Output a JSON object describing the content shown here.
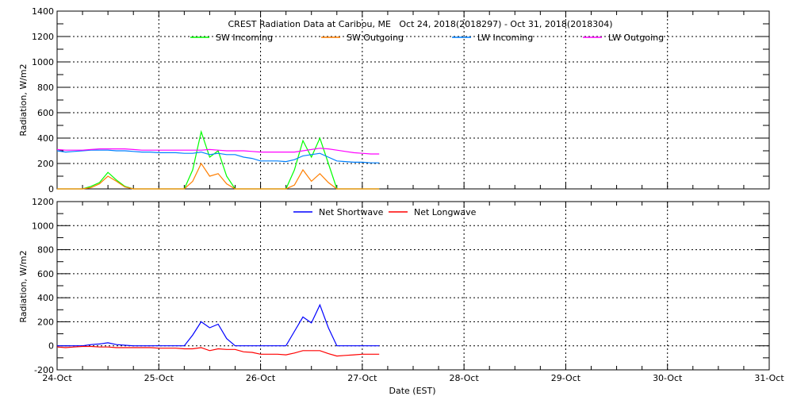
{
  "chart_data": [
    {
      "type": "line",
      "title": "CREST Radiation Data at Caribou, ME   Oct 24, 2018(2018297) - Oct 31, 2018(2018304)",
      "ylabel": "Radiation, W/m2",
      "xlabel": "",
      "xlim": [
        "2018-10-24 00:00",
        "2018-10-31 00:00"
      ],
      "ylim": [
        0,
        1400
      ],
      "yticks": [
        0,
        200,
        400,
        600,
        800,
        1000,
        1200,
        1400
      ],
      "grid": true,
      "legend_placement": "top",
      "x": [
        "10-24 00:00",
        "10-24 02:00",
        "10-24 04:00",
        "10-24 06:00",
        "10-24 08:00",
        "10-24 10:00",
        "10-24 12:00",
        "10-24 14:00",
        "10-24 16:00",
        "10-24 18:00",
        "10-24 20:00",
        "10-24 22:00",
        "10-25 00:00",
        "10-25 02:00",
        "10-25 04:00",
        "10-25 06:00",
        "10-25 08:00",
        "10-25 10:00",
        "10-25 12:00",
        "10-25 14:00",
        "10-25 16:00",
        "10-25 18:00",
        "10-25 20:00",
        "10-25 22:00",
        "10-26 00:00",
        "10-26 02:00",
        "10-26 04:00",
        "10-26 06:00",
        "10-26 08:00",
        "10-26 10:00",
        "10-26 12:00",
        "10-26 14:00",
        "10-26 16:00",
        "10-26 18:00",
        "10-26 20:00",
        "10-26 22:00",
        "10-27 00:00",
        "10-27 02:00",
        "10-27 04:00"
      ],
      "series": [
        {
          "name": "SW Incoming",
          "color": "#00ff00",
          "values": [
            0,
            0,
            0,
            0,
            20,
            50,
            130,
            70,
            20,
            0,
            0,
            0,
            0,
            0,
            0,
            0,
            150,
            450,
            250,
            300,
            100,
            0,
            0,
            0,
            0,
            0,
            0,
            0,
            150,
            380,
            250,
            400,
            200,
            0,
            0,
            0,
            0,
            0,
            0
          ]
        },
        {
          "name": "SW Outgoing",
          "color": "#ff7f00",
          "values": [
            0,
            0,
            0,
            0,
            10,
            40,
            100,
            60,
            15,
            0,
            0,
            0,
            0,
            0,
            0,
            0,
            60,
            200,
            100,
            120,
            40,
            0,
            0,
            0,
            0,
            0,
            0,
            0,
            30,
            150,
            60,
            120,
            50,
            0,
            0,
            0,
            0,
            0,
            0
          ]
        },
        {
          "name": "LW Incoming",
          "color": "#0080ff",
          "values": [
            300,
            290,
            295,
            300,
            305,
            305,
            305,
            300,
            300,
            295,
            290,
            290,
            285,
            285,
            285,
            280,
            280,
            290,
            270,
            280,
            270,
            270,
            250,
            240,
            220,
            220,
            220,
            215,
            230,
            260,
            270,
            280,
            250,
            220,
            215,
            210,
            210,
            205,
            205
          ]
        },
        {
          "name": "LW Outgoing",
          "color": "#ff00ff",
          "values": [
            310,
            305,
            305,
            305,
            310,
            315,
            315,
            315,
            315,
            310,
            305,
            305,
            305,
            305,
            305,
            305,
            305,
            305,
            310,
            305,
            300,
            300,
            300,
            295,
            290,
            290,
            290,
            290,
            290,
            300,
            310,
            320,
            315,
            305,
            295,
            285,
            280,
            275,
            275
          ]
        }
      ]
    },
    {
      "type": "line",
      "title": "",
      "ylabel": "Radiation, W/m2",
      "xlabel": "Date (EST)",
      "xlim": [
        "2018-10-24 00:00",
        "2018-10-31 00:00"
      ],
      "xticks": [
        "24-Oct",
        "25-Oct",
        "26-Oct",
        "27-Oct",
        "28-Oct",
        "29-Oct",
        "30-Oct",
        "31-Oct"
      ],
      "ylim": [
        -200,
        1200
      ],
      "yticks": [
        -200,
        0,
        200,
        400,
        600,
        800,
        1000,
        1200
      ],
      "grid": true,
      "legend_placement": "top",
      "x": [
        "10-24 00:00",
        "10-24 02:00",
        "10-24 04:00",
        "10-24 06:00",
        "10-24 08:00",
        "10-24 10:00",
        "10-24 12:00",
        "10-24 14:00",
        "10-24 16:00",
        "10-24 18:00",
        "10-24 20:00",
        "10-24 22:00",
        "10-25 00:00",
        "10-25 02:00",
        "10-25 04:00",
        "10-25 06:00",
        "10-25 08:00",
        "10-25 10:00",
        "10-25 12:00",
        "10-25 14:00",
        "10-25 16:00",
        "10-25 18:00",
        "10-25 20:00",
        "10-25 22:00",
        "10-26 00:00",
        "10-26 02:00",
        "10-26 04:00",
        "10-26 06:00",
        "10-26 08:00",
        "10-26 10:00",
        "10-26 12:00",
        "10-26 14:00",
        "10-26 16:00",
        "10-26 18:00",
        "10-26 20:00",
        "10-26 22:00",
        "10-27 00:00",
        "10-27 02:00",
        "10-27 04:00"
      ],
      "series": [
        {
          "name": "Net Shortwave",
          "color": "#0000ff",
          "values": [
            0,
            0,
            0,
            0,
            10,
            15,
            25,
            10,
            5,
            0,
            0,
            0,
            0,
            0,
            0,
            0,
            90,
            200,
            150,
            180,
            60,
            0,
            0,
            0,
            0,
            0,
            0,
            0,
            120,
            240,
            190,
            340,
            150,
            0,
            0,
            0,
            0,
            0,
            0
          ]
        },
        {
          "name": "Net Longwave",
          "color": "#ff0000",
          "values": [
            -10,
            -15,
            -10,
            -5,
            -5,
            -10,
            -10,
            -15,
            -15,
            -15,
            -15,
            -15,
            -20,
            -20,
            -20,
            -25,
            -25,
            -15,
            -40,
            -25,
            -30,
            -30,
            -50,
            -55,
            -70,
            -70,
            -70,
            -75,
            -60,
            -40,
            -40,
            -40,
            -65,
            -85,
            -80,
            -75,
            -70,
            -70,
            -70
          ]
        }
      ]
    }
  ]
}
